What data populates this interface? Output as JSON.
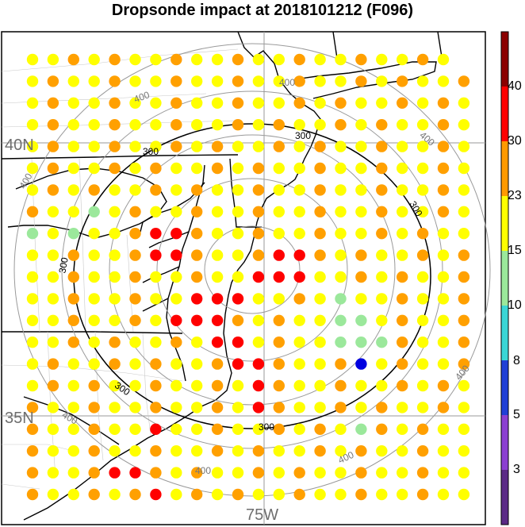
{
  "title": "Dropsonde impact at 2018101212 (F096)",
  "map_labels": {
    "lat_40": "40N",
    "lat_35": "35N",
    "lon_75": "75W"
  },
  "contour_labels": [
    "300",
    "300",
    "300",
    "300",
    "300",
    "300",
    "400",
    "400",
    "400",
    "400",
    "400",
    "400"
  ],
  "colorbar": {
    "labels": [
      "3",
      "5",
      "8",
      "10",
      "15",
      "23",
      "30",
      "40"
    ],
    "colors": [
      "#5b2a86",
      "#8b3fd1",
      "#1f3fd6",
      "#3ad6d6",
      "#9be89b",
      "#ffff00",
      "#ff9a00",
      "#ff0000",
      "#8b0000"
    ]
  },
  "chart_data": {
    "type": "scatter",
    "title": "Dropsonde impact at 2018101212 (F096)",
    "value_bins": {
      "blue": "5-8",
      "light_green": "10-15",
      "yellow": "15-23",
      "orange": "23-30",
      "red": "30-40"
    },
    "notable_points": {
      "red_count_approx": 22,
      "blue_count": 1,
      "light_green_count_approx": 9
    }
  }
}
